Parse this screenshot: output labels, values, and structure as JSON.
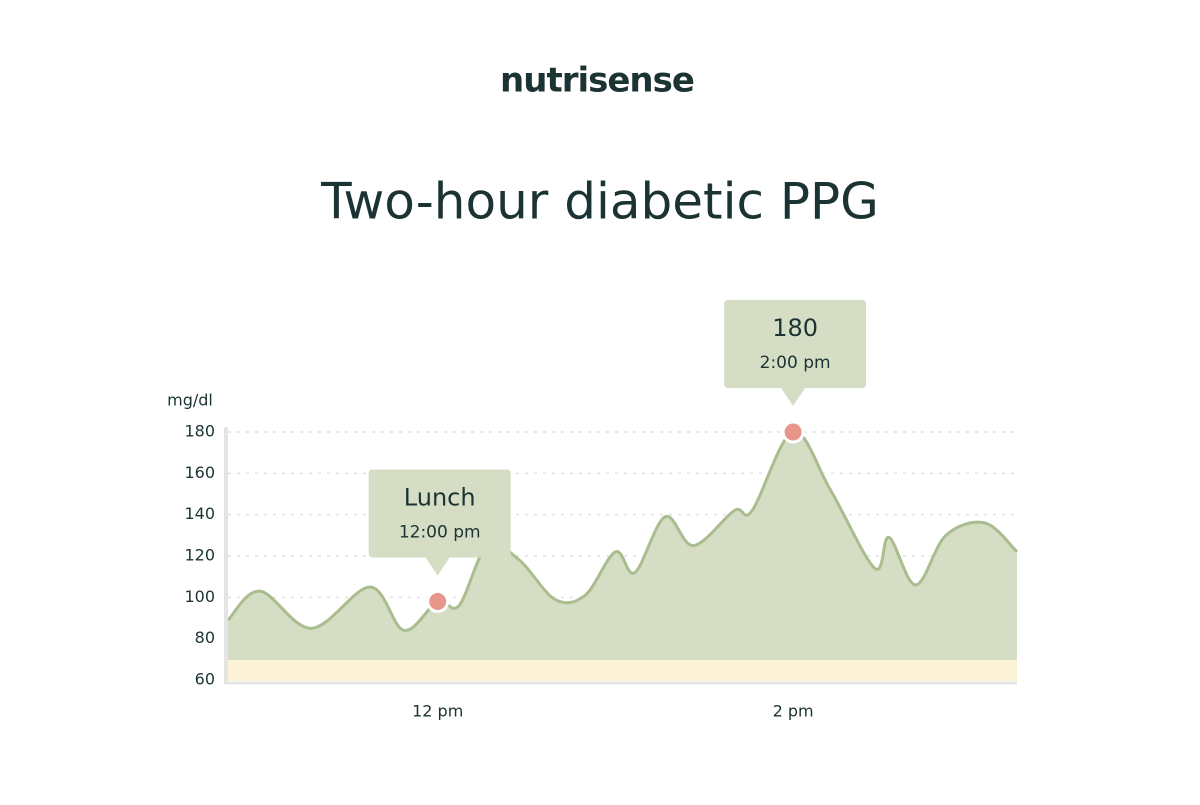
{
  "chart_data": {
    "type": "area",
    "brand": "nutrisense",
    "title": "Two-hour diabetic PPG",
    "y_label": "mg/dl",
    "x": [
      10.82,
      11.0,
      11.29,
      11.62,
      11.81,
      12.0,
      12.12,
      12.28,
      12.46,
      12.66,
      12.83,
      13.0,
      13.11,
      13.28,
      13.44,
      13.67,
      13.77,
      14.0,
      14.21,
      14.46,
      14.54,
      14.69,
      14.86,
      15.08,
      15.26
    ],
    "values": [
      89,
      103,
      85,
      105,
      84,
      98,
      96,
      125,
      118,
      99,
      101,
      122,
      112,
      139,
      125,
      142,
      142,
      180,
      152,
      114,
      129,
      106,
      130,
      136,
      122
    ],
    "color": "#d5dec5",
    "line_color": "#a9bd8f",
    "xlim": [
      10.82,
      15.26
    ],
    "xticks": [
      {
        "value": 12,
        "label": "12 pm"
      },
      {
        "value": 14,
        "label": "2 pm"
      }
    ],
    "ylim": [
      60,
      180
    ],
    "yticks": [
      60,
      80,
      100,
      120,
      140,
      160,
      180
    ],
    "grid": true,
    "annotations": [
      {
        "text": "Lunch",
        "time": "12:00 pm",
        "x": 12,
        "y": 98
      },
      {
        "text": "180",
        "time": "2:00 pm",
        "x": 14,
        "y": 180
      }
    ],
    "marker_color": "#e8958a"
  }
}
